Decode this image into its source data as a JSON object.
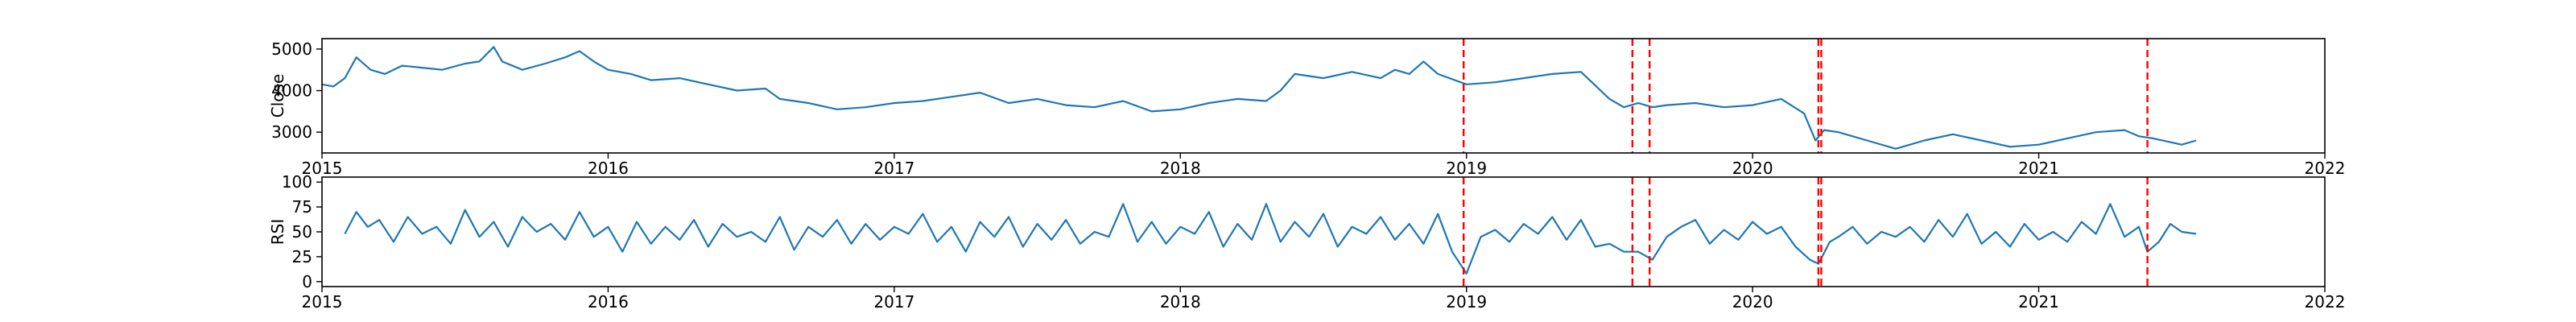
{
  "chart_data": [
    {
      "type": "line",
      "ylabel": "Close",
      "xlabel": "",
      "xlim": [
        2015.0,
        2022.0
      ],
      "ylim": [
        2500,
        5250
      ],
      "xticks": [
        2015,
        2016,
        2017,
        2018,
        2019,
        2020,
        2021,
        2022
      ],
      "xtick_labels": [
        "2015",
        "2016",
        "2017",
        "2018",
        "2019",
        "2020",
        "2021",
        "2022"
      ],
      "yticks": [
        3000,
        4000,
        5000
      ],
      "ytick_labels": [
        "3000",
        "4000",
        "5000"
      ],
      "series": [
        {
          "color": "#1f77b4",
          "x": [
            2015.0,
            2015.04,
            2015.08,
            2015.12,
            2015.17,
            2015.22,
            2015.28,
            2015.35,
            2015.42,
            2015.5,
            2015.55,
            2015.6,
            2015.63,
            2015.7,
            2015.78,
            2015.85,
            2015.9,
            2015.95,
            2016.0,
            2016.08,
            2016.15,
            2016.25,
            2016.35,
            2016.45,
            2016.55,
            2016.6,
            2016.7,
            2016.8,
            2016.9,
            2017.0,
            2017.1,
            2017.2,
            2017.3,
            2017.4,
            2017.5,
            2017.6,
            2017.7,
            2017.8,
            2017.9,
            2018.0,
            2018.1,
            2018.2,
            2018.3,
            2018.35,
            2018.4,
            2018.5,
            2018.6,
            2018.7,
            2018.75,
            2018.8,
            2018.85,
            2018.9,
            2019.0,
            2019.1,
            2019.2,
            2019.3,
            2019.4,
            2019.5,
            2019.55,
            2019.6,
            2019.65,
            2019.7,
            2019.8,
            2019.9,
            2020.0,
            2020.1,
            2020.18,
            2020.22,
            2020.25,
            2020.3,
            2020.35,
            2020.4,
            2020.5,
            2020.55,
            2020.6,
            2020.7,
            2020.8,
            2020.9,
            2021.0,
            2021.1,
            2021.2,
            2021.3,
            2021.35,
            2021.4,
            2021.5,
            2021.55
          ],
          "y": [
            4150,
            4100,
            4300,
            4800,
            4500,
            4400,
            4600,
            4550,
            4500,
            4650,
            4700,
            5050,
            4700,
            4500,
            4650,
            4800,
            4950,
            4700,
            4500,
            4400,
            4250,
            4300,
            4150,
            4000,
            4050,
            3800,
            3700,
            3550,
            3600,
            3700,
            3750,
            3850,
            3950,
            3700,
            3800,
            3650,
            3600,
            3750,
            3500,
            3550,
            3700,
            3800,
            3750,
            4000,
            4400,
            4300,
            4450,
            4300,
            4500,
            4400,
            4700,
            4400,
            4150,
            4200,
            4300,
            4400,
            4450,
            3800,
            3600,
            3700,
            3600,
            3650,
            3700,
            3600,
            3650,
            3800,
            3450,
            2800,
            3050,
            3000,
            2900,
            2800,
            2600,
            2700,
            2800,
            2950,
            2800,
            2650,
            2700,
            2850,
            3000,
            3050,
            2900,
            2850,
            2700,
            2800
          ]
        }
      ],
      "vlines": [
        2018.99,
        2019.58,
        2019.64,
        2020.23,
        2020.24,
        2021.38
      ],
      "vline_color": "#ff0000"
    },
    {
      "type": "line",
      "ylabel": "RSI",
      "xlabel": "",
      "xlim": [
        2015.0,
        2022.0
      ],
      "ylim": [
        -5,
        105
      ],
      "xticks": [
        2015,
        2016,
        2017,
        2018,
        2019,
        2020,
        2021,
        2022
      ],
      "xtick_labels": [
        "2015",
        "2016",
        "2017",
        "2018",
        "2019",
        "2020",
        "2021",
        "2022"
      ],
      "yticks": [
        0,
        25,
        50,
        75,
        100
      ],
      "ytick_labels": [
        "0",
        "25",
        "50",
        "75",
        "100"
      ],
      "series": [
        {
          "color": "#1f77b4",
          "x": [
            2015.08,
            2015.12,
            2015.16,
            2015.2,
            2015.25,
            2015.3,
            2015.35,
            2015.4,
            2015.45,
            2015.5,
            2015.55,
            2015.6,
            2015.65,
            2015.7,
            2015.75,
            2015.8,
            2015.85,
            2015.9,
            2015.95,
            2016.0,
            2016.05,
            2016.1,
            2016.15,
            2016.2,
            2016.25,
            2016.3,
            2016.35,
            2016.4,
            2016.45,
            2016.5,
            2016.55,
            2016.6,
            2016.65,
            2016.7,
            2016.75,
            2016.8,
            2016.85,
            2016.9,
            2016.95,
            2017.0,
            2017.05,
            2017.1,
            2017.15,
            2017.2,
            2017.25,
            2017.3,
            2017.35,
            2017.4,
            2017.45,
            2017.5,
            2017.55,
            2017.6,
            2017.65,
            2017.7,
            2017.75,
            2017.8,
            2017.85,
            2017.9,
            2017.95,
            2018.0,
            2018.05,
            2018.1,
            2018.15,
            2018.2,
            2018.25,
            2018.3,
            2018.35,
            2018.4,
            2018.45,
            2018.5,
            2018.55,
            2018.6,
            2018.65,
            2018.7,
            2018.75,
            2018.8,
            2018.85,
            2018.9,
            2018.95,
            2019.0,
            2019.05,
            2019.1,
            2019.15,
            2019.2,
            2019.25,
            2019.3,
            2019.35,
            2019.4,
            2019.45,
            2019.5,
            2019.55,
            2019.6,
            2019.65,
            2019.7,
            2019.75,
            2019.8,
            2019.85,
            2019.9,
            2019.95,
            2020.0,
            2020.05,
            2020.1,
            2020.15,
            2020.2,
            2020.23,
            2020.27,
            2020.3,
            2020.35,
            2020.4,
            2020.45,
            2020.5,
            2020.55,
            2020.6,
            2020.65,
            2020.7,
            2020.75,
            2020.8,
            2020.85,
            2020.9,
            2020.95,
            2021.0,
            2021.05,
            2021.1,
            2021.15,
            2021.2,
            2021.25,
            2021.3,
            2021.35,
            2021.38,
            2021.42,
            2021.46,
            2021.5,
            2021.55
          ],
          "y": [
            48,
            70,
            55,
            62,
            40,
            65,
            48,
            55,
            38,
            72,
            45,
            60,
            35,
            65,
            50,
            58,
            42,
            70,
            45,
            55,
            30,
            60,
            38,
            55,
            42,
            62,
            35,
            58,
            45,
            50,
            40,
            65,
            32,
            55,
            45,
            62,
            38,
            58,
            42,
            55,
            48,
            68,
            40,
            55,
            30,
            60,
            45,
            65,
            35,
            58,
            42,
            62,
            38,
            50,
            45,
            78,
            40,
            60,
            38,
            55,
            48,
            70,
            35,
            58,
            42,
            78,
            40,
            60,
            45,
            68,
            35,
            55,
            48,
            65,
            42,
            58,
            38,
            68,
            30,
            8,
            45,
            52,
            40,
            58,
            48,
            65,
            42,
            62,
            35,
            38,
            30,
            30,
            22,
            45,
            55,
            62,
            38,
            52,
            42,
            60,
            48,
            55,
            35,
            22,
            18,
            40,
            45,
            55,
            38,
            50,
            45,
            55,
            40,
            62,
            45,
            68,
            38,
            50,
            35,
            58,
            42,
            50,
            40,
            60,
            48,
            78,
            45,
            55,
            30,
            40,
            58,
            50,
            48
          ]
        }
      ],
      "vlines": [
        2018.99,
        2019.58,
        2019.64,
        2020.23,
        2020.24,
        2021.38
      ],
      "vline_color": "#ff0000"
    }
  ]
}
